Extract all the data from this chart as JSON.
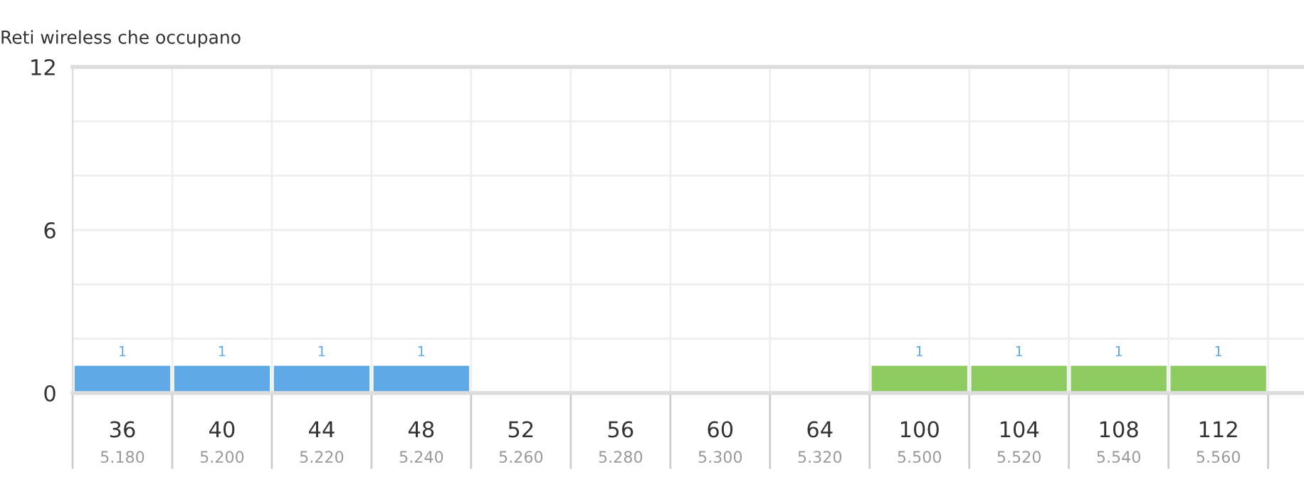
{
  "chart_data": {
    "type": "bar",
    "ylabel": "Reti wireless che occupano",
    "categories": [
      "36\n5.180",
      "40\n5.200",
      "44\n5.220",
      "48\n5.240",
      "52\n5.260",
      "56\n5.280",
      "60\n5.300",
      "64\n5.320",
      "100\n5.500",
      "104\n5.520",
      "108\n5.540",
      "112\n5.560"
    ],
    "values": [
      1,
      1,
      1,
      1,
      0,
      0,
      0,
      0,
      1,
      1,
      1,
      1
    ],
    "colors": [
      "#5ea9e6",
      "#5ea9e6",
      "#5ea9e6",
      "#5ea9e6",
      "#5ea9e6",
      "#5ea9e6",
      "#5ea9e6",
      "#5ea9e6",
      "#8ecb60",
      "#8ecb60",
      "#8ecb60",
      "#8ecb60"
    ],
    "value_labels": [
      "1",
      "1",
      "1",
      "1",
      null,
      null,
      null,
      null,
      "1",
      "1",
      "1",
      "1"
    ],
    "ylim": [
      0,
      12
    ],
    "yticks": [
      0,
      {
        "value": 2,
        "label": null
      },
      {
        "value": 4,
        "label": null
      },
      6,
      {
        "value": 8,
        "label": null
      },
      {
        "value": 10,
        "label": null
      },
      12
    ],
    "grid": true
  }
}
